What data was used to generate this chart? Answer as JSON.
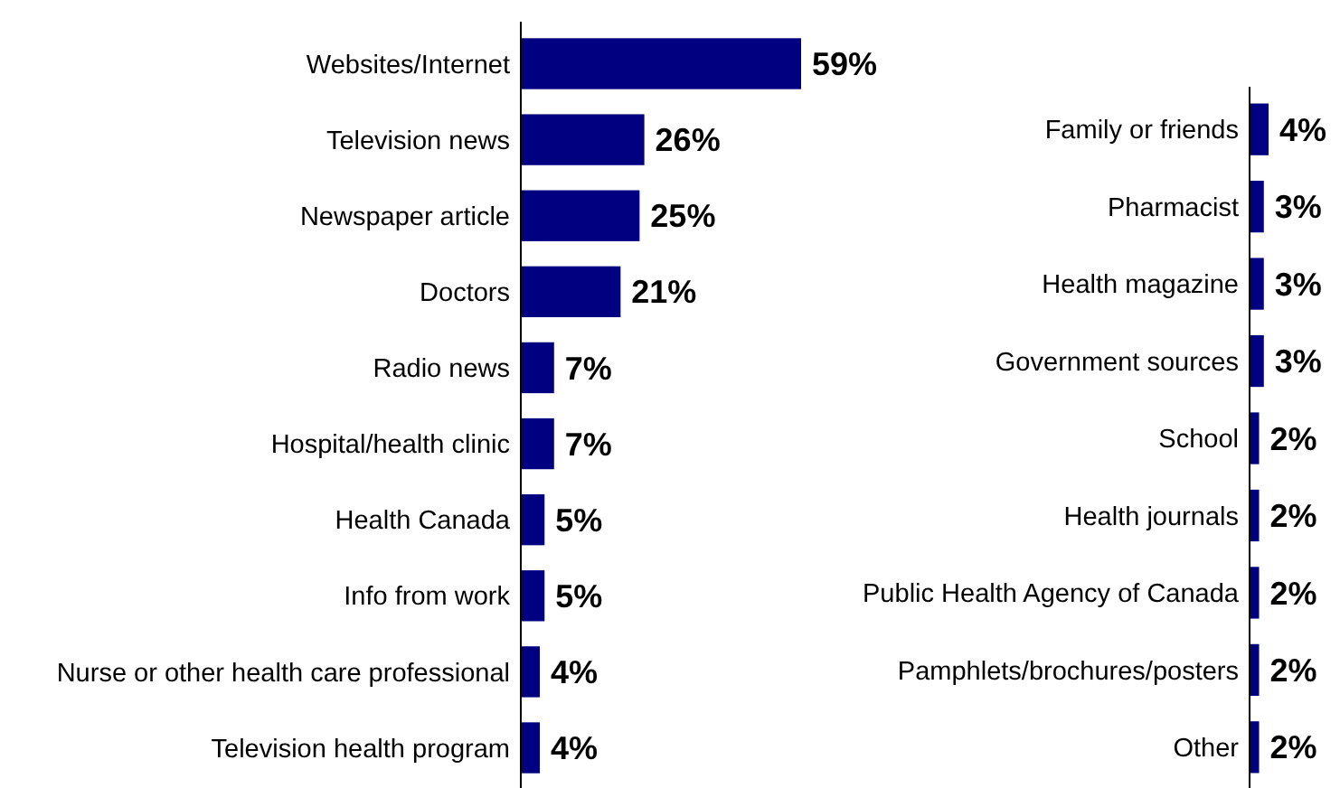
{
  "chart_data": [
    {
      "type": "bar",
      "orientation": "horizontal",
      "categories": [
        "Websites/Internet",
        "Television news",
        "Newspaper article",
        "Doctors",
        "Radio news",
        "Hospital/health clinic",
        "Health Canada",
        "Info from work",
        "Nurse or other health care professional",
        "Television health program"
      ],
      "values": [
        59,
        26,
        25,
        21,
        7,
        7,
        5,
        5,
        4,
        4
      ],
      "color": "#000080",
      "value_labels": [
        "59%",
        "26%",
        "25%",
        "21%",
        "7%",
        "7%",
        "5%",
        "5%",
        "4%",
        "4%"
      ]
    },
    {
      "type": "bar",
      "orientation": "horizontal",
      "categories": [
        "Family or friends",
        "Pharmacist",
        "Health magazine",
        "Government sources",
        "School",
        "Health journals",
        "Public Health Agency of Canada",
        "Pamphlets/brochures/posters",
        "Other"
      ],
      "values": [
        4,
        3,
        3,
        3,
        2,
        2,
        2,
        2,
        2
      ],
      "color": "#000080",
      "value_labels": [
        "4%",
        "3%",
        "3%",
        "3%",
        "2%",
        "2%",
        "2%",
        "2%",
        "2%"
      ]
    }
  ]
}
